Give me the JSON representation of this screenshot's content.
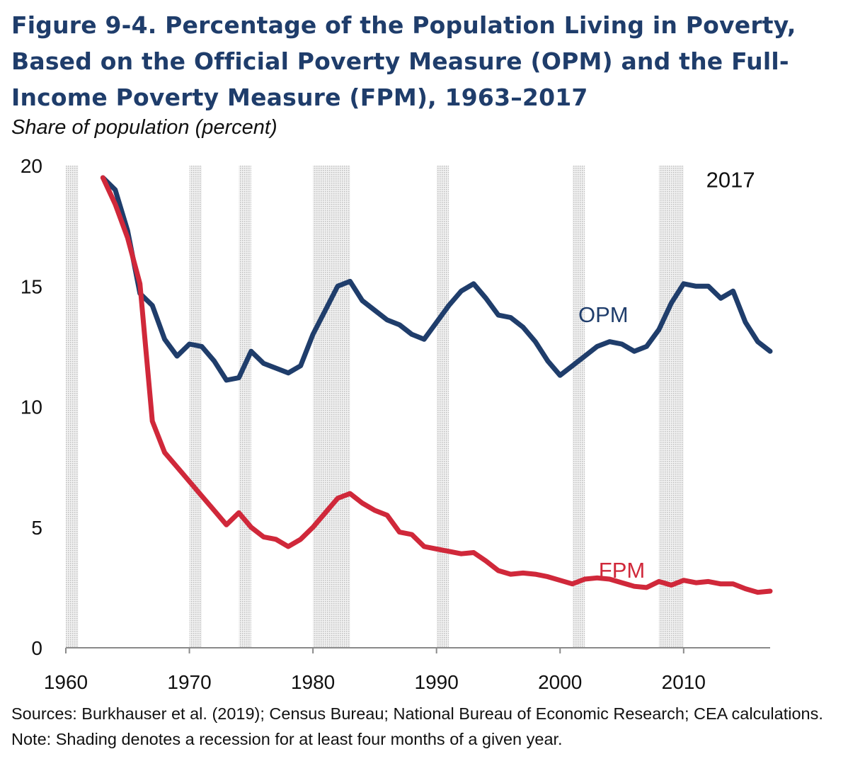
{
  "figure": {
    "title": "Figure 9-4. Percentage of the Population Living  in Poverty, Based on the Official Poverty Measure (OPM) and the Full-Income Poverty Measure (FPM), 1963–2017",
    "subtitle": "Share of population (percent)",
    "sources": "Sources: Burkhauser et al. (2019); Census Bureau; National Bureau of Economic Research; CEA calculations.",
    "note": "Note: Shading denotes a recession for at least four months of a given year."
  },
  "colors": {
    "opm": "#1f3d6b",
    "fpm": "#d0283a",
    "title": "#1f3d6b",
    "shade": "#d6d6d6"
  },
  "chart_data": {
    "type": "line",
    "title": "Figure 9-4. Percentage of the Population Living  in Poverty, Based on the Official Poverty Measure (OPM) and the Full-Income Poverty Measure (FPM), 1963–2017",
    "ylabel": "Share of population (percent)",
    "xlim": [
      1960,
      2017
    ],
    "ylim": [
      0,
      20
    ],
    "x_ticks": [
      "1960",
      "1970",
      "1980",
      "1990",
      "2000",
      "2010"
    ],
    "y_ticks": [
      "0",
      "5",
      "10",
      "15",
      "20"
    ],
    "annotation": "2017",
    "recession_years": [
      1960,
      1970,
      1974,
      1980,
      1981,
      1982,
      1990,
      2001,
      2008,
      2009
    ],
    "x": [
      1963,
      1964,
      1965,
      1966,
      1967,
      1968,
      1969,
      1970,
      1971,
      1972,
      1973,
      1974,
      1975,
      1976,
      1977,
      1978,
      1979,
      1980,
      1981,
      1982,
      1983,
      1984,
      1985,
      1986,
      1987,
      1988,
      1989,
      1990,
      1991,
      1992,
      1993,
      1994,
      1995,
      1996,
      1997,
      1998,
      1999,
      2000,
      2001,
      2002,
      2003,
      2004,
      2005,
      2006,
      2007,
      2008,
      2009,
      2010,
      2011,
      2012,
      2013,
      2014,
      2015,
      2016,
      2017
    ],
    "series": [
      {
        "name": "OPM",
        "values": [
          19.5,
          19.0,
          17.3,
          14.7,
          14.2,
          12.8,
          12.1,
          12.6,
          12.5,
          11.9,
          11.1,
          11.2,
          12.3,
          11.8,
          11.6,
          11.4,
          11.7,
          13.0,
          14.0,
          15.0,
          15.2,
          14.4,
          14.0,
          13.6,
          13.4,
          13.0,
          12.8,
          13.5,
          14.2,
          14.8,
          15.1,
          14.5,
          13.8,
          13.7,
          13.3,
          12.7,
          11.9,
          11.3,
          11.7,
          12.1,
          12.5,
          12.7,
          12.6,
          12.3,
          12.5,
          13.2,
          14.3,
          15.1,
          15.0,
          15.0,
          14.5,
          14.8,
          13.5,
          12.7,
          12.3
        ]
      },
      {
        "name": "FPM",
        "values": [
          19.5,
          18.4,
          17.0,
          15.1,
          9.4,
          8.1,
          7.5,
          6.9,
          6.3,
          5.7,
          5.1,
          5.6,
          5.0,
          4.6,
          4.5,
          4.2,
          4.5,
          5.0,
          5.6,
          6.2,
          6.4,
          6.0,
          5.7,
          5.5,
          4.8,
          4.7,
          4.2,
          4.1,
          4.0,
          3.9,
          3.95,
          3.6,
          3.2,
          3.05,
          3.1,
          3.05,
          2.95,
          2.8,
          2.65,
          2.85,
          2.9,
          2.85,
          2.7,
          2.55,
          2.5,
          2.75,
          2.6,
          2.8,
          2.7,
          2.75,
          2.65,
          2.65,
          2.45,
          2.3,
          2.35
        ]
      }
    ]
  }
}
